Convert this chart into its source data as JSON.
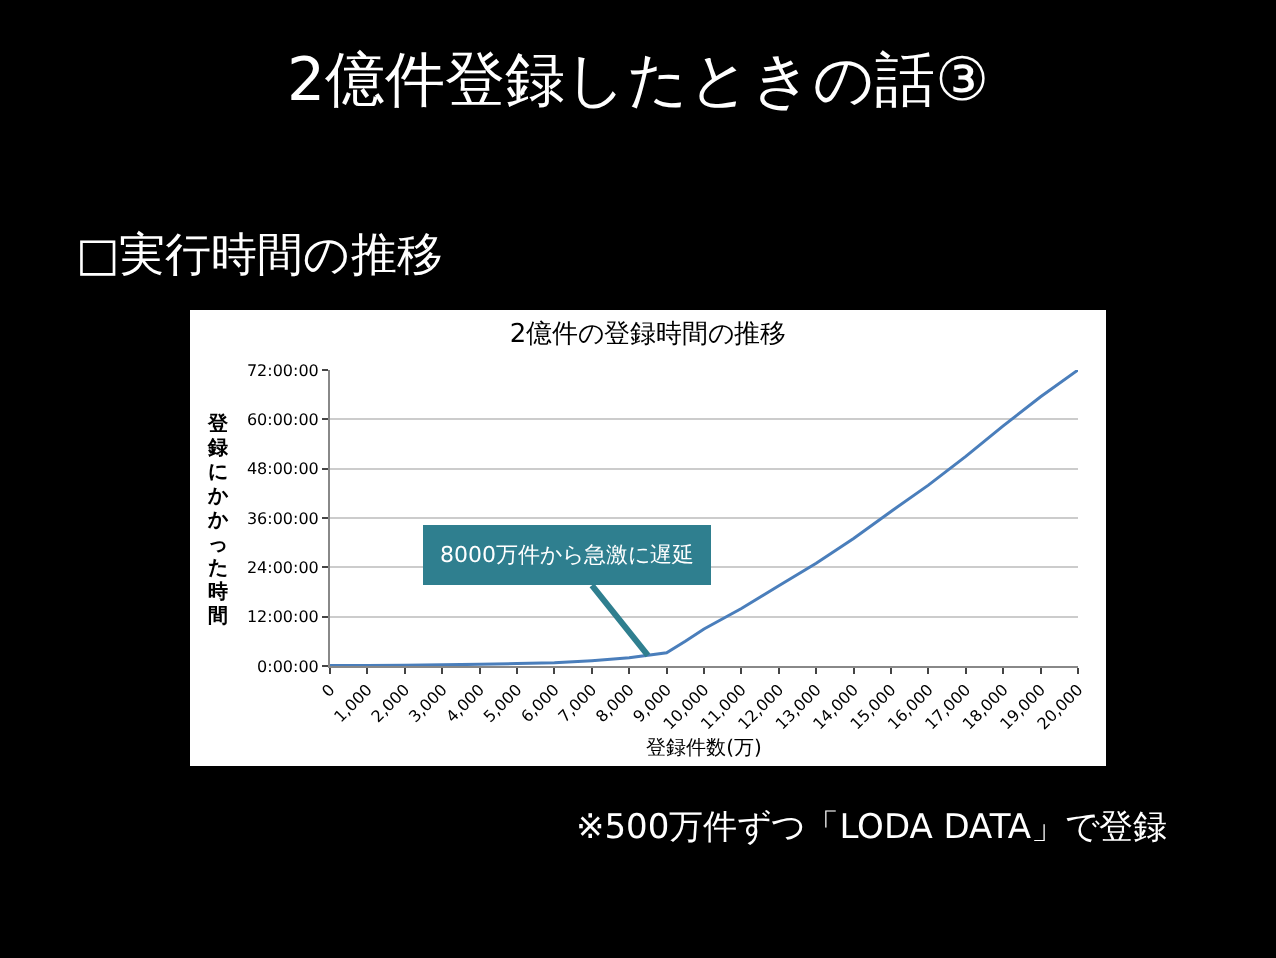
{
  "chart_data": {
    "type": "line",
    "title": "2億件の登録時間の推移",
    "xlabel": "登録件数(万)",
    "ylabel": "登録にかかった時間",
    "x": [
      0,
      1000,
      2000,
      3000,
      4000,
      5000,
      6000,
      7000,
      8000,
      9000,
      9500,
      10000,
      11000,
      12000,
      13000,
      14000,
      15000,
      16000,
      17000,
      18000,
      19000,
      20000
    ],
    "series": [
      {
        "color": "#4a7ebb",
        "values": [
          0.1,
          0.1,
          0.2,
          0.3,
          0.4,
          0.6,
          0.8,
          1.3,
          2,
          3.2,
          6,
          9,
          14,
          19.5,
          25,
          31,
          37.6,
          44,
          51,
          58.4,
          65.5,
          72
        ]
      }
    ],
    "xlim": [
      0,
      20000
    ],
    "xticks": [
      0,
      {
        "value": 1000,
        "label": "1,000"
      },
      {
        "value": 2000,
        "label": "2,000"
      },
      {
        "value": 3000,
        "label": "3,000"
      },
      {
        "value": 4000,
        "label": "4,000"
      },
      {
        "value": 5000,
        "label": "5,000"
      },
      {
        "value": 6000,
        "label": "6,000"
      },
      {
        "value": 7000,
        "label": "7,000"
      },
      {
        "value": 8000,
        "label": "8,000"
      },
      {
        "value": 9000,
        "label": "9,000"
      },
      {
        "value": 10000,
        "label": "10,000"
      },
      {
        "value": 11000,
        "label": "11,000"
      },
      {
        "value": 12000,
        "label": "12,000"
      },
      {
        "value": 13000,
        "label": "13,000"
      },
      {
        "value": 14000,
        "label": "14,000"
      },
      {
        "value": 15000,
        "label": "15,000"
      },
      {
        "value": 16000,
        "label": "16,000"
      },
      {
        "value": 17000,
        "label": "17,000"
      },
      {
        "value": 18000,
        "label": "18,000"
      },
      {
        "value": 19000,
        "label": "19,000"
      },
      {
        "value": 20000,
        "label": "20,000"
      }
    ],
    "ylim": [
      0,
      72
    ],
    "yticks": [
      {
        "value": 0,
        "label": "0:00:00"
      },
      {
        "value": 12,
        "label": "12:00:00"
      },
      {
        "value": 24,
        "label": "24:00:00"
      },
      {
        "value": 36,
        "label": "36:00:00"
      },
      {
        "value": 48,
        "label": "48:00:00"
      },
      {
        "value": 60,
        "label": "60:00:00"
      },
      {
        "value": 72,
        "label": "72:00:00"
      }
    ],
    "grid": "y",
    "marker": "none",
    "line_style": "solid",
    "annotations": [
      "2億件登録したときの話③",
      "□実行時間の推移",
      {
        "text": "8000万件から急激に遅延",
        "x": 8500,
        "y": 2.6
      },
      "※500万件ずつ「LODA DATA」で登録"
    ]
  }
}
